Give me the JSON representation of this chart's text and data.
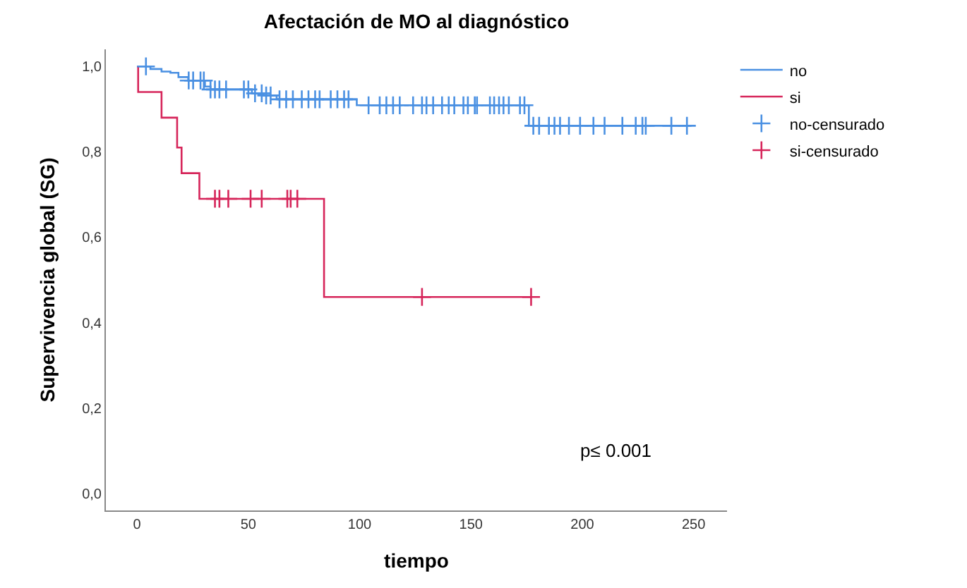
{
  "chart_data": {
    "type": "step",
    "title": "Afectación de MO al diagnóstico",
    "xlabel": "tiempo",
    "ylabel": "Supervivencia global (SG)",
    "xlim": [
      -14,
      265
    ],
    "ylim": [
      -0.04,
      1.04
    ],
    "xticks": [
      0,
      50,
      100,
      150,
      200,
      250
    ],
    "yticks": [
      {
        "value": 0,
        "label": "0,0"
      },
      {
        "value": 0.2,
        "label": "0,2"
      },
      {
        "value": 0.4,
        "label": "0,4"
      },
      {
        "value": 0.6,
        "label": "0,6"
      },
      {
        "value": 0.8,
        "label": "0,8"
      },
      {
        "value": 1,
        "label": "1,0"
      }
    ],
    "legend": "top right",
    "annotations": [
      "p≤ 0.001"
    ],
    "series": [
      {
        "name": "no",
        "color": "#4a90e2",
        "x": [
          0,
          6,
          11,
          15,
          18.6,
          23,
          30.5,
          33,
          51.6,
          57,
          62.7,
          98.7,
          176,
          249
        ],
        "values": [
          1,
          0.994,
          0.988,
          0.985,
          0.975,
          0.967,
          0.953,
          0.946,
          0.937,
          0.932,
          0.923,
          0.909,
          0.861,
          0.861
        ]
      },
      {
        "name": "si",
        "color": "#d6255a",
        "x": [
          0,
          0.5,
          11,
          18,
          20,
          28,
          84,
          177
        ],
        "values": [
          1,
          0.94,
          0.88,
          0.81,
          0.75,
          0.69,
          0.46,
          0.46
        ]
      },
      {
        "name": "no-censurado",
        "type": "scatter",
        "marker": "cross",
        "color": "#4a90e2",
        "x": [
          4,
          23.2,
          25.2,
          28.5,
          30,
          33,
          35,
          37,
          40,
          48,
          50,
          53,
          56,
          58,
          60,
          64,
          67,
          70,
          74,
          77,
          80,
          82,
          87,
          90,
          93,
          95,
          104,
          109,
          112,
          115,
          118,
          124,
          128,
          130,
          133,
          137,
          140,
          142.5,
          146.6,
          148.6,
          151.7,
          152.7,
          158.5,
          160.4,
          162.6,
          164.6,
          167,
          172,
          174,
          178,
          180.6,
          185,
          187.5,
          190,
          194,
          199,
          205,
          210,
          218,
          224,
          227,
          228.5,
          240,
          247
        ],
        "values": [
          1,
          0.967,
          0.967,
          0.967,
          0.967,
          0.946,
          0.946,
          0.946,
          0.946,
          0.946,
          0.946,
          0.937,
          0.937,
          0.932,
          0.932,
          0.923,
          0.923,
          0.923,
          0.923,
          0.923,
          0.923,
          0.923,
          0.923,
          0.923,
          0.923,
          0.923,
          0.909,
          0.909,
          0.909,
          0.909,
          0.909,
          0.909,
          0.909,
          0.909,
          0.909,
          0.909,
          0.909,
          0.909,
          0.909,
          0.909,
          0.909,
          0.909,
          0.909,
          0.909,
          0.909,
          0.909,
          0.909,
          0.909,
          0.909,
          0.861,
          0.861,
          0.861,
          0.861,
          0.861,
          0.861,
          0.861,
          0.861,
          0.861,
          0.861,
          0.861,
          0.861,
          0.861,
          0.861,
          0.861
        ]
      },
      {
        "name": "si-censurado",
        "type": "scatter",
        "marker": "cross",
        "color": "#d6255a",
        "x": [
          35,
          37,
          41,
          51,
          56,
          67.5,
          69,
          72,
          128,
          177
        ],
        "values": [
          0.69,
          0.69,
          0.69,
          0.69,
          0.69,
          0.69,
          0.69,
          0.69,
          0.46,
          0.46
        ]
      }
    ]
  }
}
